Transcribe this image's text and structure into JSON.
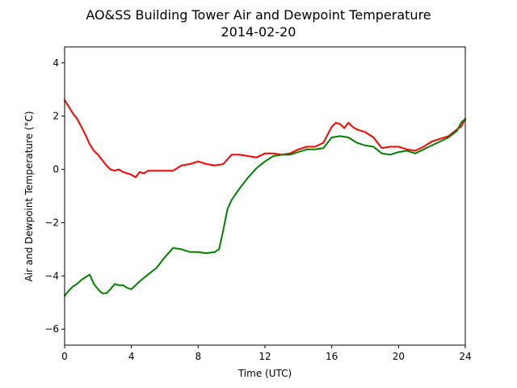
{
  "chart_data": {
    "type": "line",
    "title": "AO&SS Building Tower Air and Dewpoint Temperature",
    "subtitle": "2014-02-20",
    "xlabel": "Time (UTC)",
    "ylabel": "Air and Dewpoint Temperature (°C)",
    "xlim": [
      0,
      24
    ],
    "ylim": [
      -6.6,
      4.6
    ],
    "xticks": [
      0,
      4,
      8,
      12,
      16,
      20,
      24
    ],
    "yticks": [
      -6,
      -4,
      -2,
      0,
      2,
      4
    ],
    "xtick_labels": [
      "0",
      "4",
      "8",
      "12",
      "16",
      "20",
      "24"
    ],
    "ytick_labels": [
      "−6",
      "−4",
      "−2",
      "0",
      "2",
      "4"
    ],
    "grid": false,
    "legend": "none",
    "series": [
      {
        "color": "#ff0000",
        "x": [
          0,
          0.25,
          0.5,
          0.75,
          1.0,
          1.25,
          1.5,
          1.75,
          2.0,
          2.25,
          2.5,
          2.75,
          3.0,
          3.25,
          3.5,
          3.75,
          4.0,
          4.25,
          4.5,
          4.75,
          5.0,
          5.5,
          6.0,
          6.5,
          7.0,
          7.5,
          8.0,
          8.5,
          9.0,
          9.5,
          10.0,
          10.5,
          11.0,
          11.5,
          12.0,
          12.5,
          13.0,
          13.5,
          14.0,
          14.5,
          15.0,
          15.5,
          16.0,
          16.25,
          16.5,
          16.75,
          17.0,
          17.25,
          17.5,
          18.0,
          18.5,
          19.0,
          19.5,
          20.0,
          20.5,
          21.0,
          21.5,
          22.0,
          22.5,
          23.0,
          23.5,
          23.75,
          24.0
        ],
        "values": [
          2.6,
          2.35,
          2.1,
          1.9,
          1.6,
          1.3,
          0.95,
          0.7,
          0.55,
          0.35,
          0.15,
          0.0,
          -0.05,
          0.0,
          -0.1,
          -0.15,
          -0.2,
          -0.3,
          -0.1,
          -0.15,
          -0.05,
          -0.05,
          -0.05,
          -0.05,
          0.15,
          0.2,
          0.3,
          0.2,
          0.15,
          0.2,
          0.55,
          0.55,
          0.5,
          0.45,
          0.6,
          0.6,
          0.55,
          0.6,
          0.75,
          0.85,
          0.85,
          1.0,
          1.6,
          1.75,
          1.7,
          1.55,
          1.75,
          1.6,
          1.5,
          1.4,
          1.2,
          0.8,
          0.85,
          0.85,
          0.75,
          0.7,
          0.85,
          1.05,
          1.15,
          1.25,
          1.5,
          1.6,
          1.9
        ]
      },
      {
        "color": "#008000",
        "x": [
          0,
          0.25,
          0.5,
          0.75,
          1.0,
          1.25,
          1.5,
          1.75,
          2.0,
          2.25,
          2.5,
          2.75,
          3.0,
          3.25,
          3.5,
          3.75,
          4.0,
          4.5,
          5.0,
          5.5,
          6.0,
          6.5,
          7.0,
          7.5,
          8.0,
          8.5,
          9.0,
          9.25,
          9.5,
          9.75,
          10.0,
          10.5,
          11.0,
          11.5,
          12.0,
          12.5,
          13.0,
          13.5,
          14.0,
          14.5,
          15.0,
          15.5,
          16.0,
          16.5,
          17.0,
          17.5,
          18.0,
          18.5,
          19.0,
          19.5,
          20.0,
          20.5,
          21.0,
          21.5,
          22.0,
          22.5,
          23.0,
          23.5,
          23.75,
          24.0
        ],
        "values": [
          -4.75,
          -4.55,
          -4.4,
          -4.3,
          -4.15,
          -4.05,
          -3.95,
          -4.3,
          -4.5,
          -4.65,
          -4.65,
          -4.5,
          -4.3,
          -4.35,
          -4.35,
          -4.45,
          -4.5,
          -4.2,
          -3.95,
          -3.7,
          -3.3,
          -2.95,
          -3.0,
          -3.1,
          -3.1,
          -3.15,
          -3.1,
          -3.0,
          -2.3,
          -1.5,
          -1.15,
          -0.7,
          -0.3,
          0.05,
          0.3,
          0.5,
          0.55,
          0.55,
          0.65,
          0.75,
          0.75,
          0.8,
          1.2,
          1.25,
          1.2,
          1.0,
          0.9,
          0.85,
          0.6,
          0.55,
          0.65,
          0.7,
          0.6,
          0.75,
          0.9,
          1.05,
          1.2,
          1.45,
          1.75,
          1.9
        ]
      }
    ]
  }
}
